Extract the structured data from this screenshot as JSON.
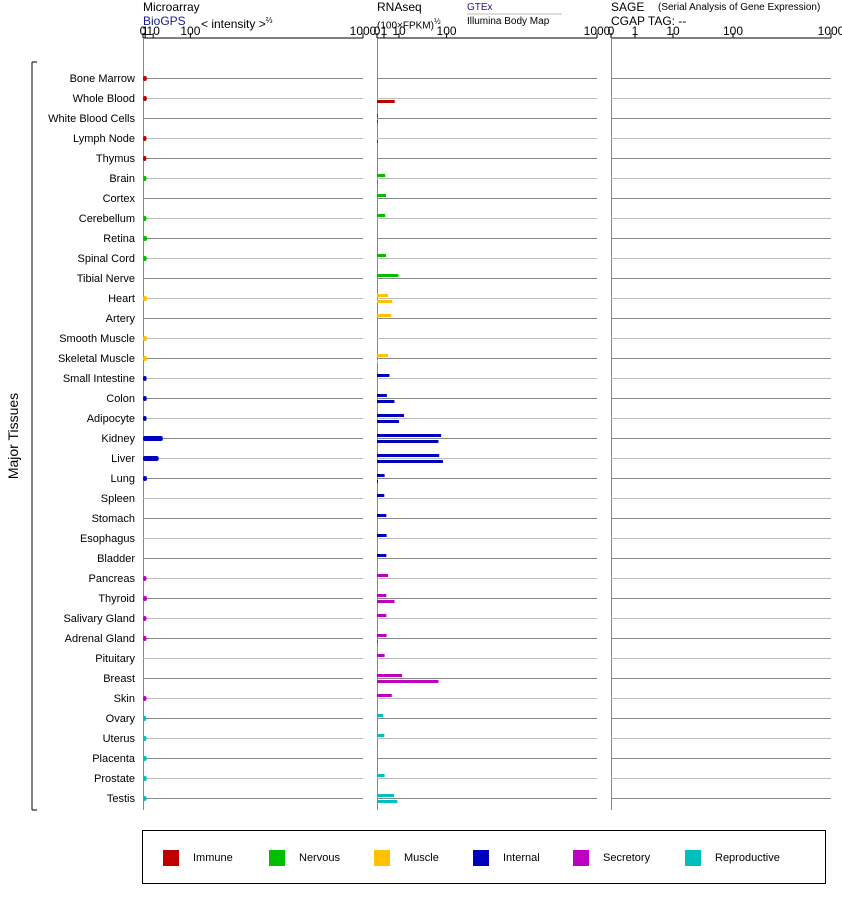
{
  "headers": {
    "microarray_title": "Microarray",
    "biogps_label": "BioGPS",
    "microarray_scale": "< intensity >",
    "microarray_exp": "⅔",
    "rnaseq_title": "RNAseq",
    "rnaseq_unit": "(100×FPKM)",
    "rnaseq_exp": "½",
    "gtex_label": "GTEx",
    "illumina_label": "Illumina Body Map",
    "sage_title": "SAGE",
    "sage_subtitle": "(Serial Analysis of Gene Expression)",
    "cgap_tag": "CGAP  TAG:  --"
  },
  "y_axis_label": "Major Tissues",
  "categories": [
    {
      "name": "Immune",
      "color": "#bf0000"
    },
    {
      "name": "Nervous",
      "color": "#00bf00"
    },
    {
      "name": "Muscle",
      "color": "#ffc000"
    },
    {
      "name": "Internal",
      "color": "#0000bf"
    },
    {
      "name": "Secretory",
      "color": "#bf00bf"
    },
    {
      "name": "Reproductive",
      "color": "#00bfbf"
    }
  ],
  "chart_data": [
    {
      "panel": "Microarray",
      "type": "bar",
      "x_scale": "power 2/3",
      "ticks": [
        "0",
        "1",
        "10",
        "100",
        "1000"
      ],
      "tick_values": [
        0,
        1,
        10,
        100,
        1000
      ],
      "xlim": [
        0,
        1000
      ],
      "tissues": [
        {
          "tissue": "Bone Marrow",
          "category": "Immune",
          "value": 2.3
        },
        {
          "tissue": "Whole Blood",
          "category": "Immune",
          "value": 2.3
        },
        {
          "tissue": "White Blood Cells",
          "category": "Immune",
          "value": null
        },
        {
          "tissue": "Lymph Node",
          "category": "Immune",
          "value": 2.0
        },
        {
          "tissue": "Thymus",
          "category": "Immune",
          "value": 1.9
        },
        {
          "tissue": "Brain",
          "category": "Nervous",
          "value": 2.0
        },
        {
          "tissue": "Cortex",
          "category": "Nervous",
          "value": null
        },
        {
          "tissue": "Cerebellum",
          "category": "Nervous",
          "value": 2.0
        },
        {
          "tissue": "Retina",
          "category": "Nervous",
          "value": 2.5
        },
        {
          "tissue": "Spinal Cord",
          "category": "Nervous",
          "value": 2.2
        },
        {
          "tissue": "Tibial Nerve",
          "category": "Nervous",
          "value": null
        },
        {
          "tissue": "Heart",
          "category": "Muscle",
          "value": 2.5
        },
        {
          "tissue": "Artery",
          "category": "Muscle",
          "value": null
        },
        {
          "tissue": "Smooth Muscle",
          "category": "Muscle",
          "value": 2.3
        },
        {
          "tissue": "Skeletal Muscle",
          "category": "Muscle",
          "value": 2.4
        },
        {
          "tissue": "Small Intestine",
          "category": "Internal",
          "value": 2.1
        },
        {
          "tissue": "Colon",
          "category": "Internal",
          "value": 2.2
        },
        {
          "tissue": "Adipocyte",
          "category": "Internal",
          "value": 2.1
        },
        {
          "tissue": "Kidney",
          "category": "Internal",
          "value": 27
        },
        {
          "tissue": "Liver",
          "category": "Internal",
          "value": 19
        },
        {
          "tissue": "Lung",
          "category": "Internal",
          "value": 2.4
        },
        {
          "tissue": "Spleen",
          "category": "Internal",
          "value": null
        },
        {
          "tissue": "Stomach",
          "category": "Internal",
          "value": null
        },
        {
          "tissue": "Esophagus",
          "category": "Internal",
          "value": null
        },
        {
          "tissue": "Bladder",
          "category": "Internal",
          "value": null
        },
        {
          "tissue": "Pancreas",
          "category": "Secretory",
          "value": 2.0
        },
        {
          "tissue": "Thyroid",
          "category": "Secretory",
          "value": 2.4
        },
        {
          "tissue": "Salivary Gland",
          "category": "Secretory",
          "value": 2.0
        },
        {
          "tissue": "Adrenal Gland",
          "category": "Secretory",
          "value": 2.0
        },
        {
          "tissue": "Pituitary",
          "category": "Secretory",
          "value": null
        },
        {
          "tissue": "Breast",
          "category": "Secretory",
          "value": null
        },
        {
          "tissue": "Skin",
          "category": "Secretory",
          "value": 2.0
        },
        {
          "tissue": "Ovary",
          "category": "Reproductive",
          "value": 1.8
        },
        {
          "tissue": "Uterus",
          "category": "Reproductive",
          "value": 2.0
        },
        {
          "tissue": "Placenta",
          "category": "Reproductive",
          "value": 2.2
        },
        {
          "tissue": "Prostate",
          "category": "Reproductive",
          "value": 2.2
        },
        {
          "tissue": "Testis",
          "category": "Reproductive",
          "value": 2.0
        }
      ]
    },
    {
      "panel": "RNAseq",
      "type": "bar",
      "x_scale": "power 1/2",
      "ticks": [
        "0",
        "1",
        "10",
        "100",
        "1000"
      ],
      "tick_values": [
        0,
        1,
        10,
        100,
        1000
      ],
      "xlim": [
        0,
        1000
      ],
      "series": [
        "GTEx",
        "Illumina Body Map"
      ],
      "tissues": [
        {
          "tissue": "Bone Marrow",
          "category": "Immune",
          "gtex": null,
          "ibm": null
        },
        {
          "tissue": "Whole Blood",
          "category": "Immune",
          "gtex": null,
          "ibm": 6.5
        },
        {
          "tissue": "White Blood Cells",
          "category": "Immune",
          "gtex": 0.01,
          "ibm": 0.01
        },
        {
          "tissue": "Lymph Node",
          "category": "Immune",
          "gtex": null,
          "ibm": 0.01
        },
        {
          "tissue": "Thymus",
          "category": "Immune",
          "gtex": null,
          "ibm": null
        },
        {
          "tissue": "Brain",
          "category": "Nervous",
          "gtex": 1.4,
          "ibm": 0.01
        },
        {
          "tissue": "Cortex",
          "category": "Nervous",
          "gtex": 1.7,
          "ibm": null
        },
        {
          "tissue": "Cerebellum",
          "category": "Nervous",
          "gtex": 1.4,
          "ibm": null
        },
        {
          "tissue": "Retina",
          "category": "Nervous",
          "gtex": null,
          "ibm": null
        },
        {
          "tissue": "Spinal Cord",
          "category": "Nervous",
          "gtex": 1.7,
          "ibm": null
        },
        {
          "tissue": "Tibial Nerve",
          "category": "Nervous",
          "gtex": 9.5,
          "ibm": null
        },
        {
          "tissue": "Heart",
          "category": "Muscle",
          "gtex": 2.5,
          "ibm": 4.8
        },
        {
          "tissue": "Artery",
          "category": "Muscle",
          "gtex": 4.2,
          "ibm": null
        },
        {
          "tissue": "Smooth Muscle",
          "category": "Muscle",
          "gtex": null,
          "ibm": null
        },
        {
          "tissue": "Skeletal Muscle",
          "category": "Muscle",
          "gtex": 2.5,
          "ibm": 0.01
        },
        {
          "tissue": "Small Intestine",
          "category": "Internal",
          "gtex": 3.2,
          "ibm": null
        },
        {
          "tissue": "Colon",
          "category": "Internal",
          "gtex": 2.0,
          "ibm": 6.3
        },
        {
          "tissue": "Adipocyte",
          "category": "Internal",
          "gtex": 15,
          "ibm": 10
        },
        {
          "tissue": "Kidney",
          "category": "Internal",
          "gtex": 85,
          "ibm": 78
        },
        {
          "tissue": "Liver",
          "category": "Internal",
          "gtex": 80,
          "ibm": 90
        },
        {
          "tissue": "Lung",
          "category": "Internal",
          "gtex": 1.2,
          "ibm": 0.01
        },
        {
          "tissue": "Spleen",
          "category": "Internal",
          "gtex": 1.1,
          "ibm": null
        },
        {
          "tissue": "Stomach",
          "category": "Internal",
          "gtex": 1.8,
          "ibm": null
        },
        {
          "tissue": "Esophagus",
          "category": "Internal",
          "gtex": 1.9,
          "ibm": null
        },
        {
          "tissue": "Bladder",
          "category": "Internal",
          "gtex": 1.8,
          "ibm": null
        },
        {
          "tissue": "Pancreas",
          "category": "Secretory",
          "gtex": 2.5,
          "ibm": null
        },
        {
          "tissue": "Thyroid",
          "category": "Secretory",
          "gtex": 1.8,
          "ibm": 6.3
        },
        {
          "tissue": "Salivary Gland",
          "category": "Secretory",
          "gtex": 1.8,
          "ibm": null
        },
        {
          "tissue": "Adrenal Gland",
          "category": "Secretory",
          "gtex": 1.9,
          "ibm": 0.01
        },
        {
          "tissue": "Pituitary",
          "category": "Secretory",
          "gtex": 1.2,
          "ibm": null
        },
        {
          "tissue": "Breast",
          "category": "Secretory",
          "gtex": 13,
          "ibm": 78
        },
        {
          "tissue": "Skin",
          "category": "Secretory",
          "gtex": 4.5,
          "ibm": null
        },
        {
          "tissue": "Ovary",
          "category": "Reproductive",
          "gtex": 0.8,
          "ibm": 0.01
        },
        {
          "tissue": "Uterus",
          "category": "Reproductive",
          "gtex": 1.1,
          "ibm": null
        },
        {
          "tissue": "Placenta",
          "category": "Reproductive",
          "gtex": null,
          "ibm": null
        },
        {
          "tissue": "Prostate",
          "category": "Reproductive",
          "gtex": 1.2,
          "ibm": 0.01
        },
        {
          "tissue": "Testis",
          "category": "Reproductive",
          "gtex": 6.0,
          "ibm": 8.5
        }
      ]
    },
    {
      "panel": "SAGE",
      "type": "bar",
      "x_scale": "log-like",
      "ticks": [
        "0",
        "1",
        "10",
        "100",
        "1000"
      ],
      "tick_values": [
        0,
        1,
        10,
        100,
        1000
      ],
      "xlim": [
        0,
        1000
      ],
      "tissues": []
    }
  ]
}
